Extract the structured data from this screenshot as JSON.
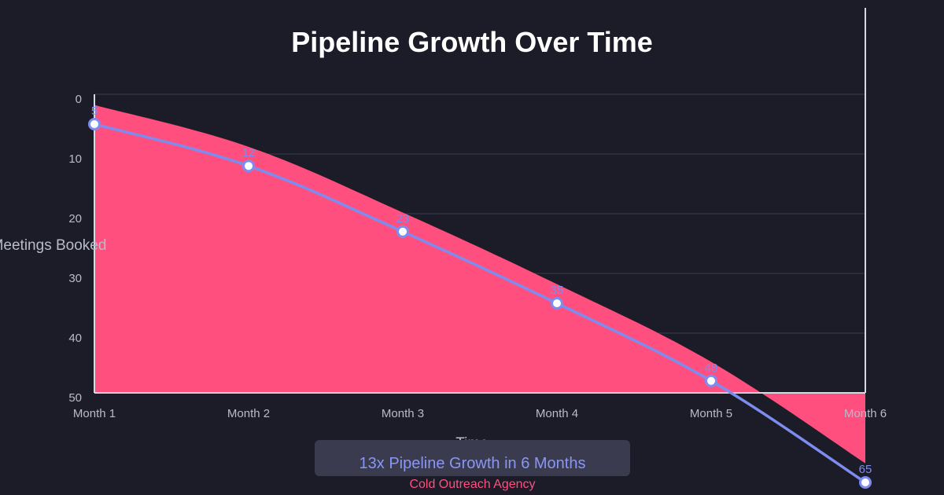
{
  "chart_data": {
    "type": "area",
    "title": "Pipeline Growth Over Time",
    "xlabel": "Time",
    "ylabel": "Meetings Booked",
    "categories": [
      "Month 1",
      "Month 2",
      "Month 3",
      "Month 4",
      "Month 5",
      "Month 6"
    ],
    "series": [
      {
        "values": [
          5,
          12,
          23,
          35,
          48,
          65
        ],
        "data_labels": [
          "5",
          "12",
          "23",
          "35",
          "48",
          "65"
        ]
      }
    ],
    "y_ticks": [
      "0",
      "10",
      "20",
      "30",
      "40",
      "50"
    ],
    "ylim": [
      50,
      0
    ],
    "y_axis_reversed": true,
    "grid": true,
    "colors": {
      "background": "#1c1c28",
      "area_fill": "#ff4f7e",
      "line": "#7d8cf0",
      "grid": "#3a3b4e",
      "axis": "#d8d8e0"
    }
  },
  "footer": {
    "badge_text": "13x Pipeline Growth in 6 Months",
    "brand": "Cold Outreach Agency"
  }
}
